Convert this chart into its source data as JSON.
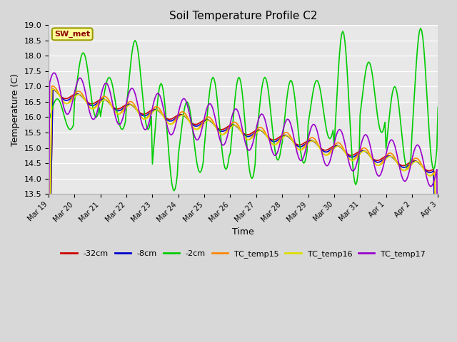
{
  "title": "Soil Temperature Profile C2",
  "xlabel": "Time",
  "ylabel": "Temperature (C)",
  "ylim": [
    13.5,
    19.0
  ],
  "background_color": "#d8d8d8",
  "plot_bg_color": "#e8e8e8",
  "annotation_text": "SW_met",
  "annotation_color": "#8b0000",
  "annotation_bg": "#ffff99",
  "annotation_border": "#999900",
  "series": {
    "-32cm": {
      "color": "#cc0000",
      "lw": 1.2
    },
    "-8cm": {
      "color": "#0000cc",
      "lw": 1.2
    },
    "-2cm": {
      "color": "#00cc00",
      "lw": 1.2
    },
    "TC_temp15": {
      "color": "#ff8800",
      "lw": 1.2
    },
    "TC_temp16": {
      "color": "#dddd00",
      "lw": 1.2
    },
    "TC_temp17": {
      "color": "#9900cc",
      "lw": 1.2
    }
  },
  "xtick_labels": [
    "Mar 19",
    "Mar 20",
    "Mar 21",
    "Mar 22",
    "Mar 23",
    "Mar 24",
    "Mar 25",
    "Mar 26",
    "Mar 27",
    "Mar 28",
    "Mar 29",
    "Mar 30",
    "Mar 31",
    "Apr 1",
    "Apr 2",
    "Apr 3"
  ],
  "ytick_values": [
    13.5,
    14.0,
    14.5,
    15.0,
    15.5,
    16.0,
    16.5,
    17.0,
    17.5,
    18.0,
    18.5,
    19.0
  ],
  "figsize": [
    6.4,
    4.8
  ],
  "dpi": 100
}
